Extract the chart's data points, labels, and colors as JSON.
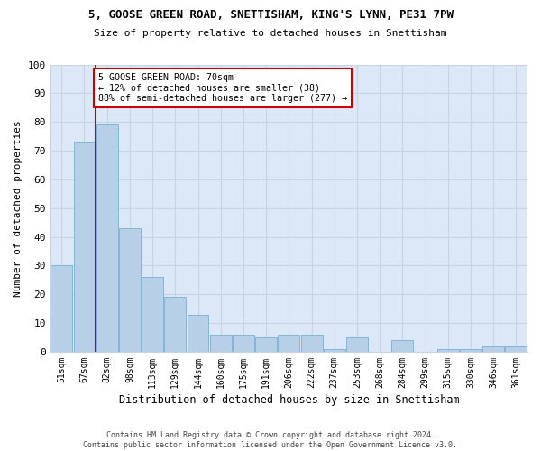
{
  "title1": "5, GOOSE GREEN ROAD, SNETTISHAM, KING'S LYNN, PE31 7PW",
  "title2": "Size of property relative to detached houses in Snettisham",
  "xlabel": "Distribution of detached houses by size in Snettisham",
  "ylabel": "Number of detached properties",
  "categories": [
    "51sqm",
    "67sqm",
    "82sqm",
    "98sqm",
    "113sqm",
    "129sqm",
    "144sqm",
    "160sqm",
    "175sqm",
    "191sqm",
    "206sqm",
    "222sqm",
    "237sqm",
    "253sqm",
    "268sqm",
    "284sqm",
    "299sqm",
    "315sqm",
    "330sqm",
    "346sqm",
    "361sqm"
  ],
  "values": [
    30,
    73,
    79,
    43,
    26,
    19,
    13,
    6,
    6,
    5,
    6,
    6,
    1,
    5,
    0,
    4,
    0,
    1,
    1,
    2,
    2
  ],
  "bar_color": "#b8cfe8",
  "bar_edge_color": "#7aaed4",
  "vline_color": "#cc0000",
  "vline_x_index": 1.5,
  "annotation_text": "5 GOOSE GREEN ROAD: 70sqm\n← 12% of detached houses are smaller (38)\n88% of semi-detached houses are larger (277) →",
  "annotation_box_color": "#ffffff",
  "annotation_border_color": "#cc0000",
  "grid_color": "#c8d4e4",
  "plot_bg_color": "#dce8f8",
  "fig_bg_color": "#ffffff",
  "ylim": [
    0,
    100
  ],
  "yticks": [
    0,
    10,
    20,
    30,
    40,
    50,
    60,
    70,
    80,
    90,
    100
  ],
  "footnote": "Contains HM Land Registry data © Crown copyright and database right 2024.\nContains public sector information licensed under the Open Government Licence v3.0."
}
